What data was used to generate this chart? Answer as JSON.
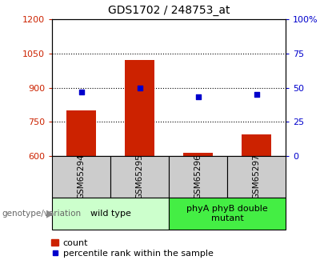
{
  "title": "GDS1702 / 248753_at",
  "categories": [
    "GSM65294",
    "GSM65295",
    "GSM65296",
    "GSM65297"
  ],
  "bar_values": [
    800,
    1020,
    615,
    695
  ],
  "percentile_values": [
    47,
    50,
    43,
    45
  ],
  "ylim_left": [
    600,
    1200
  ],
  "ylim_right": [
    0,
    100
  ],
  "yticks_left": [
    600,
    750,
    900,
    1050,
    1200
  ],
  "yticks_right": [
    0,
    25,
    50,
    75,
    100
  ],
  "bar_color": "#cc2200",
  "scatter_color": "#0000cc",
  "group_labels": [
    "wild type",
    "phyA phyB double\nmutant"
  ],
  "group_colors": [
    "#ccffcc",
    "#44ee44"
  ],
  "genotype_label": "genotype/variation",
  "legend_bar_label": "count",
  "legend_scatter_label": "percentile rank within the sample",
  "tick_area_color": "#cccccc"
}
